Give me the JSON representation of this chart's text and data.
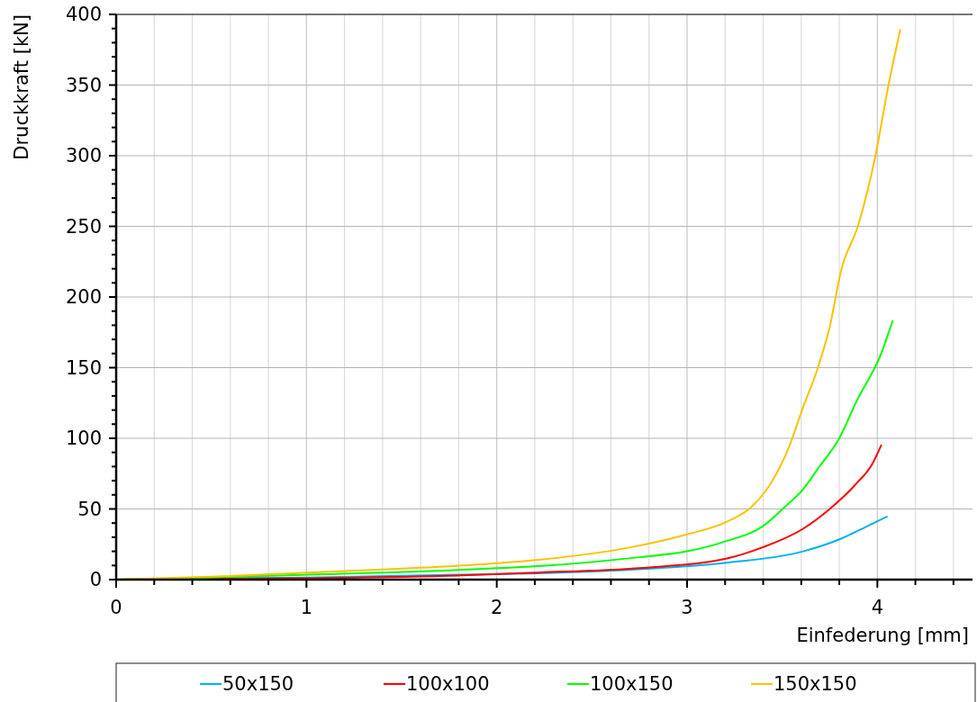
{
  "chart_data": {
    "type": "line",
    "xlabel": "Einfederung [mm]",
    "ylabel": "Druckkraft [kN]",
    "xlim": [
      0,
      4.5
    ],
    "ylim": [
      0,
      400
    ],
    "xticks": [
      0,
      {
        "value": 0.2,
        "label": null
      },
      {
        "value": 0.4,
        "label": null
      },
      {
        "value": 0.6,
        "label": null
      },
      {
        "value": 0.8,
        "label": null
      },
      1,
      {
        "value": 1.2,
        "label": null
      },
      {
        "value": 1.4,
        "label": null
      },
      {
        "value": 1.6,
        "label": null
      },
      {
        "value": 1.8,
        "label": null
      },
      2,
      {
        "value": 2.2,
        "label": null
      },
      {
        "value": 2.4,
        "label": null
      },
      {
        "value": 2.6,
        "label": null
      },
      {
        "value": 2.8,
        "label": null
      },
      3,
      {
        "value": 3.2,
        "label": null
      },
      {
        "value": 3.4,
        "label": null
      },
      {
        "value": 3.6,
        "label": null
      },
      {
        "value": 3.8,
        "label": null
      },
      4,
      {
        "value": 4.2,
        "label": null
      },
      {
        "value": 4.4,
        "label": null
      }
    ],
    "yticks": [
      0,
      {
        "value": 10,
        "label": null
      },
      {
        "value": 20,
        "label": null
      },
      {
        "value": 30,
        "label": null
      },
      {
        "value": 40,
        "label": null
      },
      50,
      {
        "value": 60,
        "label": null
      },
      {
        "value": 70,
        "label": null
      },
      {
        "value": 80,
        "label": null
      },
      {
        "value": 90,
        "label": null
      },
      100,
      {
        "value": 110,
        "label": null
      },
      {
        "value": 120,
        "label": null
      },
      {
        "value": 130,
        "label": null
      },
      {
        "value": 140,
        "label": null
      },
      150,
      {
        "value": 160,
        "label": null
      },
      {
        "value": 170,
        "label": null
      },
      {
        "value": 180,
        "label": null
      },
      {
        "value": 190,
        "label": null
      },
      200,
      {
        "value": 210,
        "label": null
      },
      {
        "value": 220,
        "label": null
      },
      {
        "value": 230,
        "label": null
      },
      {
        "value": 240,
        "label": null
      },
      250,
      {
        "value": 260,
        "label": null
      },
      {
        "value": 270,
        "label": null
      },
      {
        "value": 280,
        "label": null
      },
      {
        "value": 290,
        "label": null
      },
      300,
      {
        "value": 310,
        "label": null
      },
      {
        "value": 320,
        "label": null
      },
      {
        "value": 330,
        "label": null
      },
      {
        "value": 340,
        "label": null
      },
      350,
      {
        "value": 360,
        "label": null
      },
      {
        "value": 370,
        "label": null
      },
      {
        "value": 380,
        "label": null
      },
      {
        "value": 390,
        "label": null
      },
      400
    ],
    "grid": true,
    "legend": "bottom",
    "marker": "none",
    "line_style": "solid",
    "series": [
      {
        "name": "50x150",
        "color": "#00b0f0",
        "x": [
          0,
          1.0,
          1.82,
          2.22,
          2.71,
          3.21,
          3.61,
          3.81,
          3.95,
          4.05
        ],
        "values": [
          0,
          1.5,
          3.5,
          4.5,
          7,
          12,
          20,
          29,
          38,
          44.5
        ]
      },
      {
        "name": "100x100",
        "color": "#ff0000",
        "x": [
          0,
          1.0,
          1.82,
          2.22,
          2.71,
          3.21,
          3.4,
          3.61,
          3.75,
          3.89,
          3.97,
          4.02
        ],
        "values": [
          0,
          1,
          3,
          5,
          7.8,
          15,
          23,
          36,
          50,
          68,
          81,
          95
        ]
      },
      {
        "name": "100x150",
        "color": "#00ff00",
        "x": [
          0,
          0.5,
          1.01,
          1.82,
          2.22,
          2.76,
          3.0,
          3.2,
          3.4,
          3.51,
          3.61,
          3.69,
          3.8,
          3.89,
          4.02,
          4.08
        ],
        "values": [
          0,
          1.5,
          3.5,
          7,
          9.5,
          16,
          20,
          27,
          38,
          51,
          64,
          79,
          100,
          126,
          160,
          183
        ]
      },
      {
        "name": "150x150",
        "color": "#ffc000",
        "x": [
          0,
          0.5,
          1.01,
          1.82,
          2.22,
          2.71,
          3.0,
          3.21,
          3.34,
          3.42,
          3.53,
          3.61,
          3.69,
          3.75,
          3.81,
          3.9,
          3.99,
          4.06,
          4.12
        ],
        "values": [
          0,
          2,
          5,
          10,
          14,
          23,
          32,
          41,
          51.6,
          64,
          92,
          122,
          151,
          179,
          219,
          251,
          300,
          351,
          389
        ]
      }
    ]
  }
}
